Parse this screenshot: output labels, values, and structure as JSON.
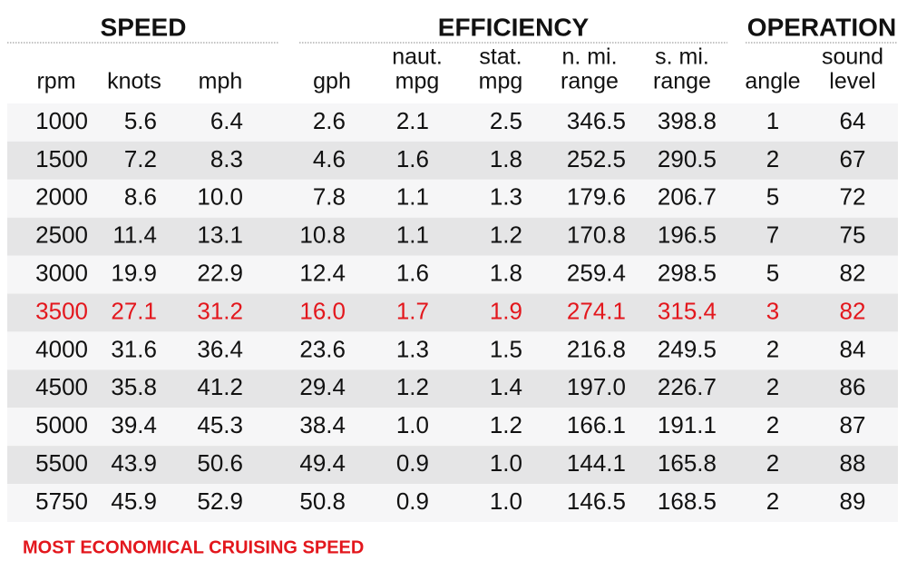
{
  "groups": [
    {
      "title": "SPEED",
      "columns": [
        [
          "rpm"
        ],
        [
          "knots"
        ],
        [
          "mph"
        ]
      ]
    },
    {
      "title": "EFFICIENCY",
      "columns": [
        [
          "gph"
        ],
        [
          "naut.",
          "mpg"
        ],
        [
          "stat.",
          "mpg"
        ],
        [
          "n. mi.",
          "range"
        ],
        [
          "s. mi.",
          "range"
        ]
      ]
    },
    {
      "title": "OPERATION",
      "columns": [
        [
          "angle"
        ],
        [
          "sound",
          "level"
        ]
      ]
    }
  ],
  "table": {
    "rows": [
      [
        "1000",
        "5.6",
        "6.4",
        "2.6",
        "2.1",
        "2.5",
        "346.5",
        "398.8",
        "1",
        "64"
      ],
      [
        "1500",
        "7.2",
        "8.3",
        "4.6",
        "1.6",
        "1.8",
        "252.5",
        "290.5",
        "2",
        "67"
      ],
      [
        "2000",
        "8.6",
        "10.0",
        "7.8",
        "1.1",
        "1.3",
        "179.6",
        "206.7",
        "5",
        "72"
      ],
      [
        "2500",
        "11.4",
        "13.1",
        "10.8",
        "1.1",
        "1.2",
        "170.8",
        "196.5",
        "7",
        "75"
      ],
      [
        "3000",
        "19.9",
        "22.9",
        "12.4",
        "1.6",
        "1.8",
        "259.4",
        "298.5",
        "5",
        "82"
      ],
      [
        "3500",
        "27.1",
        "31.2",
        "16.0",
        "1.7",
        "1.9",
        "274.1",
        "315.4",
        "3",
        "82"
      ],
      [
        "4000",
        "31.6",
        "36.4",
        "23.6",
        "1.3",
        "1.5",
        "216.8",
        "249.5",
        "2",
        "84"
      ],
      [
        "4500",
        "35.8",
        "41.2",
        "29.4",
        "1.2",
        "1.4",
        "197.0",
        "226.7",
        "2",
        "86"
      ],
      [
        "5000",
        "39.4",
        "45.3",
        "38.4",
        "1.0",
        "1.2",
        "166.1",
        "191.1",
        "2",
        "87"
      ],
      [
        "5500",
        "43.9",
        "50.6",
        "49.4",
        "0.9",
        "1.0",
        "144.1",
        "165.8",
        "2",
        "88"
      ],
      [
        "5750",
        "45.9",
        "52.9",
        "50.8",
        "0.9",
        "1.0",
        "146.5",
        "168.5",
        "2",
        "89"
      ]
    ]
  },
  "highlight": {
    "row": 5,
    "color": "#e3171d"
  },
  "footnote": "MOST ECONOMICAL CRUISING SPEED"
}
